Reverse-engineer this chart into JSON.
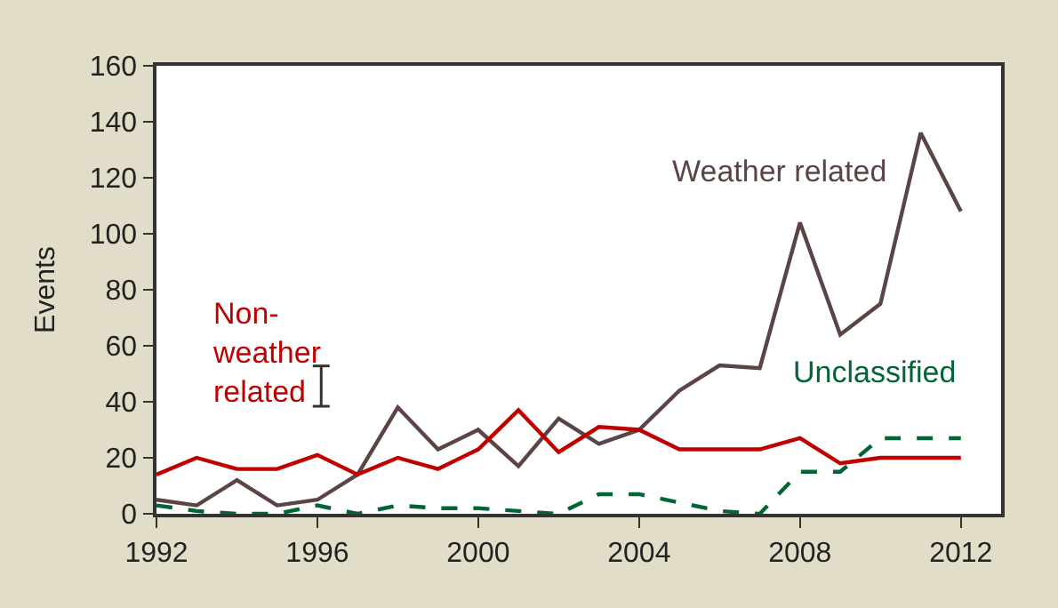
{
  "chart_data": {
    "type": "line",
    "ylabel": "Events",
    "x": [
      1992,
      1993,
      1994,
      1995,
      1996,
      1997,
      1998,
      1999,
      2000,
      2001,
      2002,
      2003,
      2004,
      2005,
      2006,
      2007,
      2008,
      2009,
      2010,
      2011,
      2012
    ],
    "series": [
      {
        "name": "Weather related",
        "color": "#5b4444",
        "line_style": "solid",
        "values": [
          5,
          3,
          12,
          3,
          5,
          14,
          38,
          23,
          30,
          17,
          34,
          25,
          30,
          44,
          53,
          52,
          104,
          64,
          75,
          136,
          108
        ]
      },
      {
        "name": "Non-weather related",
        "color": "#c00000",
        "line_style": "solid",
        "values": [
          14,
          20,
          16,
          16,
          21,
          14,
          20,
          16,
          23,
          37,
          22,
          31,
          30,
          23,
          23,
          23,
          27,
          18,
          20,
          20,
          20
        ]
      },
      {
        "name": "Unclassified",
        "color": "#006633",
        "line_style": "dashed",
        "values": [
          3,
          1,
          0,
          0,
          3,
          0,
          3,
          2,
          2,
          1,
          0,
          7,
          7,
          4,
          1,
          0,
          15,
          15,
          27,
          27,
          27
        ]
      }
    ],
    "xlim": [
      1992,
      2013
    ],
    "xticks": [
      1992,
      1996,
      2000,
      2004,
      2008,
      2012
    ],
    "ylim": [
      0,
      160
    ],
    "yticks": [
      0,
      20,
      40,
      60,
      80,
      100,
      120,
      140,
      160
    ],
    "legend": false,
    "marker": "none"
  }
}
